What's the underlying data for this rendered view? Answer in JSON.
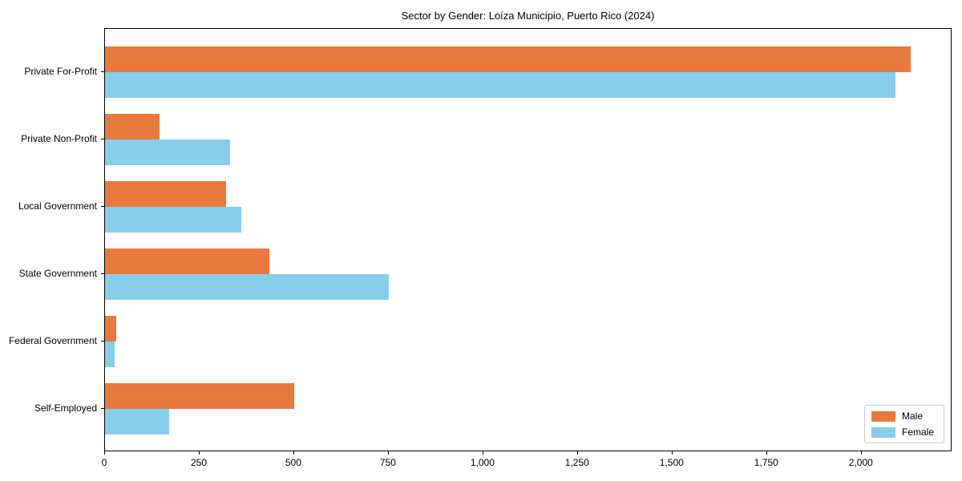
{
  "chart_data": {
    "type": "bar",
    "orientation": "horizontal",
    "title": "Sector by Gender: Loíza Municipio, Puerto Rico (2024)",
    "categories": [
      "Private For-Profit",
      "Private Non-Profit",
      "Local Government",
      "State Government",
      "Federal Government",
      "Self-Employed"
    ],
    "series": [
      {
        "name": "Male",
        "color": "#e8793c",
        "values": [
          2130,
          145,
          320,
          435,
          30,
          500
        ]
      },
      {
        "name": "Female",
        "color": "#87ceeb",
        "values": [
          2090,
          330,
          360,
          750,
          25,
          170
        ]
      }
    ],
    "xlabel": "",
    "ylabel": "",
    "xlim": [
      0,
      2240
    ],
    "x_ticks": [
      0,
      250,
      500,
      750,
      1000,
      1250,
      1500,
      1750,
      2000
    ],
    "x_tick_labels": [
      "0",
      "250",
      "500",
      "750",
      "1,000",
      "1,250",
      "1,500",
      "1,750",
      "2,000"
    ],
    "grid": false,
    "legend_position": "lower right"
  },
  "colors": {
    "background": "#ffffff",
    "spine": "#000000",
    "text": "#000000",
    "legend_border": "#cccccc"
  }
}
